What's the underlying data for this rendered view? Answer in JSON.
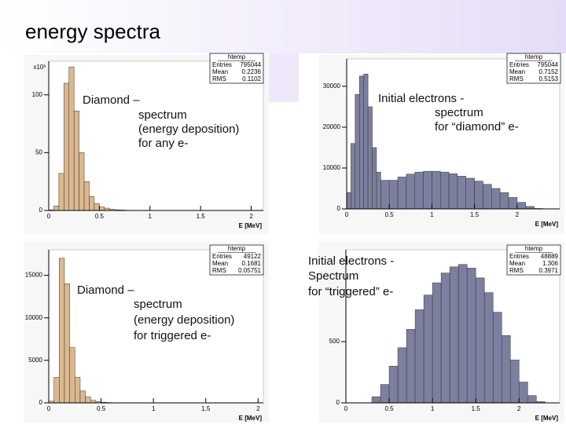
{
  "title": "energy spectra",
  "chart_data": [
    {
      "type": "histogram",
      "color": "#dcb88e",
      "x_label": "E [MeV]",
      "y_multiplier": "x10³",
      "annotation": [
        "Diamond –",
        "spectrum",
        "(energy deposition)",
        "for any e-"
      ],
      "stats": {
        "title": "htemp",
        "rows": [
          {
            "label": "Entries",
            "value": 795044
          },
          {
            "label": "Mean",
            "value": 0.2236
          },
          {
            "label": "RMS",
            "value": 0.1102
          }
        ]
      },
      "bins": [
        0,
        0.05,
        0.1,
        0.15,
        0.2,
        0.25,
        0.3,
        0.35,
        0.4,
        0.45,
        0.5,
        0.55,
        0.6,
        0.65,
        0.7,
        0.75,
        0.8
      ],
      "counts": [
        0.5,
        4,
        32,
        110,
        124,
        86,
        50,
        25,
        12,
        6,
        3,
        2,
        1,
        0.6,
        0.4,
        0.2
      ],
      "xlim": [
        0,
        2.12
      ],
      "ylim": [
        0,
        129
      ],
      "xticks": [
        0,
        0.5,
        1,
        1.5,
        2
      ],
      "yticks": [
        0,
        50,
        100
      ]
    },
    {
      "type": "histogram",
      "color": "#7c7f9e",
      "x_label": "E [MeV]",
      "annotation": [
        "Initial electrons -",
        "spectrum",
        "for “diamond” e-"
      ],
      "stats": {
        "title": "htemp",
        "rows": [
          {
            "label": "Entries",
            "value": 795044
          },
          {
            "label": "Mean",
            "value": 0.7152
          },
          {
            "label": "RMS",
            "value": 0.5153
          }
        ]
      },
      "bins": [
        0,
        0.05,
        0.1,
        0.15,
        0.2,
        0.25,
        0.3,
        0.35,
        0.4,
        0.5,
        0.6,
        0.7,
        0.8,
        0.9,
        1.0,
        1.1,
        1.2,
        1.3,
        1.4,
        1.5,
        1.6,
        1.7,
        1.8,
        1.9,
        2.0,
        2.1,
        2.2,
        2.3
      ],
      "counts": [
        4000,
        16000,
        28000,
        32500,
        33000,
        25000,
        15000,
        9000,
        7000,
        7000,
        7800,
        8500,
        9000,
        9200,
        9200,
        9000,
        8600,
        8000,
        7500,
        6800,
        6000,
        5000,
        4000,
        2800,
        1600,
        600,
        100
      ],
      "xlim": [
        0,
        2.5
      ],
      "ylim": [
        0,
        36700
      ],
      "xticks": [
        0,
        0.5,
        1,
        1.5,
        2
      ],
      "yticks": [
        0,
        10000,
        20000,
        30000
      ]
    },
    {
      "type": "histogram",
      "color": "#dcb88e",
      "x_label": "E [MeV]",
      "annotation": [
        "Diamond –",
        "spectrum",
        "(energy deposition)",
        "for triggered e-"
      ],
      "stats": {
        "title": "htemp",
        "rows": [
          {
            "label": "Entries",
            "value": 49122
          },
          {
            "label": "Mean",
            "value": 0.1681
          },
          {
            "label": "RMS",
            "value": 0.05751
          }
        ]
      },
      "bins": [
        0,
        0.05,
        0.1,
        0.15,
        0.2,
        0.25,
        0.3,
        0.35,
        0.4,
        0.45,
        0.5,
        0.55,
        0.6
      ],
      "counts": [
        200,
        3000,
        17000,
        14000,
        6500,
        3000,
        1400,
        700,
        300,
        150,
        80,
        40
      ],
      "xlim": [
        0,
        2.05
      ],
      "ylim": [
        0,
        18000
      ],
      "xticks": [
        0,
        0.5,
        1,
        1.5,
        2
      ],
      "yticks": [
        0,
        5000,
        10000,
        15000
      ]
    },
    {
      "type": "histogram",
      "color": "#7c7f9e",
      "x_label": "E [MeV]",
      "annotation": [
        "Initial electrons -",
        "Spectrum",
        "for “triggered” e-"
      ],
      "stats": {
        "title": "htemp",
        "rows": [
          {
            "label": "Entries",
            "value": 48889
          },
          {
            "label": "Mean",
            "value": 1.306
          },
          {
            "label": "RMS",
            "value": 0.3971
          }
        ]
      },
      "bins": [
        0.3,
        0.4,
        0.5,
        0.6,
        0.7,
        0.8,
        0.9,
        1.0,
        1.1,
        1.2,
        1.3,
        1.4,
        1.5,
        1.6,
        1.7,
        1.8,
        1.9,
        2.0,
        2.1,
        2.2,
        2.3
      ],
      "counts": [
        50,
        150,
        300,
        450,
        600,
        760,
        880,
        980,
        1060,
        1110,
        1130,
        1100,
        1020,
        900,
        740,
        550,
        350,
        170,
        60,
        10
      ],
      "xlim": [
        0,
        2.47
      ],
      "ylim": [
        0,
        1250
      ],
      "xticks": [
        0,
        0.5,
        1,
        1.5,
        2
      ],
      "yticks": [
        0,
        500
      ]
    }
  ]
}
